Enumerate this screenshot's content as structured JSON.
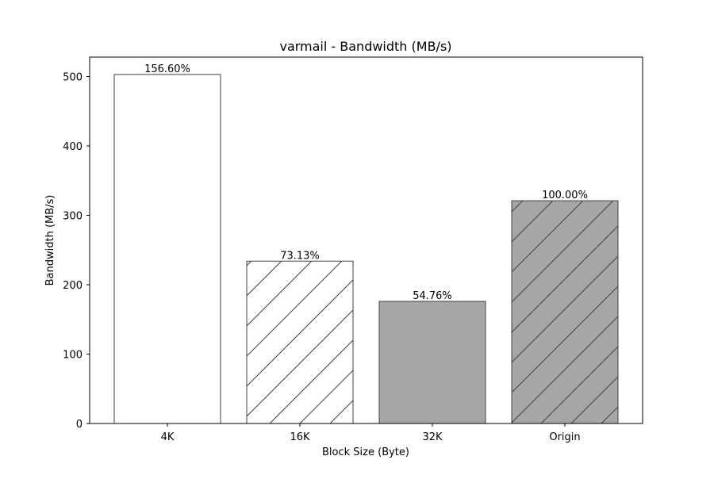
{
  "chart_data": {
    "type": "bar",
    "title": "varmail - Bandwidth (MB/s)",
    "xlabel": "Block Size (Byte)",
    "ylabel": "Bandwidth (MB/s)",
    "categories": [
      "4K",
      "16K",
      "32K",
      "Origin"
    ],
    "values": [
      503,
      234,
      176,
      321
    ],
    "data_labels": [
      "156.60%",
      "73.13%",
      "54.76%",
      "100.00%"
    ],
    "ylim": [
      0,
      528
    ],
    "yticks": [
      0,
      100,
      200,
      300,
      400,
      500
    ],
    "ytick_labels": [
      "0",
      "100",
      "200",
      "300",
      "400",
      "500"
    ],
    "grid": false,
    "bar_fills": [
      "#ffffff",
      "#ffffff",
      "#a6a6a6",
      "#a6a6a6"
    ],
    "bar_hatched": [
      false,
      true,
      false,
      true
    ],
    "edge_color": "#404040"
  }
}
